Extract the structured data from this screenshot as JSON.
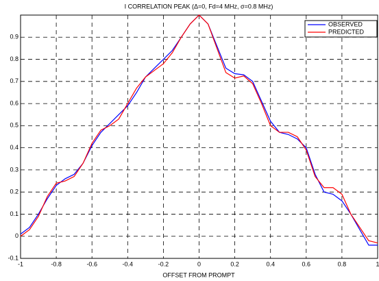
{
  "chart_data": {
    "type": "line",
    "title": "I CORRELATION PEAK (Δ=0, Fd=4 MHz, σ=0.8 MHz)",
    "x_label": "OFFSET FROM PROMPT",
    "x": [
      -1,
      -0.95,
      -0.9,
      -0.85,
      -0.8,
      -0.75,
      -0.7,
      -0.65,
      -0.6,
      -0.55,
      -0.5,
      -0.45,
      -0.4,
      -0.35,
      -0.3,
      -0.25,
      -0.2,
      -0.15,
      -0.1,
      -0.05,
      0,
      0.05,
      0.1,
      0.15,
      0.2,
      0.25,
      0.3,
      0.35,
      0.4,
      0.45,
      0.5,
      0.55,
      0.6,
      0.65,
      0.7,
      0.75,
      0.8,
      0.85,
      0.9,
      0.95,
      1
    ],
    "series": [
      {
        "name": "OBSERVED",
        "color": "#0000ff",
        "values": [
          0.01,
          0.04,
          0.1,
          0.17,
          0.23,
          0.26,
          0.28,
          0.33,
          0.41,
          0.47,
          0.51,
          0.55,
          0.59,
          0.65,
          0.72,
          0.76,
          0.8,
          0.84,
          0.9,
          0.96,
          1.0,
          0.96,
          0.86,
          0.76,
          0.735,
          0.73,
          0.7,
          0.61,
          0.52,
          0.47,
          0.46,
          0.44,
          0.4,
          0.28,
          0.2,
          0.19,
          0.16,
          0.1,
          0.03,
          -0.04,
          -0.04
        ]
      },
      {
        "name": "PREDICTED",
        "color": "#ff0000",
        "values": [
          0.0,
          0.03,
          0.09,
          0.18,
          0.24,
          0.25,
          0.27,
          0.33,
          0.42,
          0.48,
          0.5,
          0.53,
          0.6,
          0.67,
          0.72,
          0.75,
          0.78,
          0.83,
          0.9,
          0.96,
          1.0,
          0.96,
          0.85,
          0.74,
          0.715,
          0.725,
          0.69,
          0.6,
          0.5,
          0.47,
          0.47,
          0.45,
          0.39,
          0.27,
          0.22,
          0.22,
          0.19,
          0.1,
          0.04,
          -0.02,
          -0.03
        ]
      }
    ],
    "xlim": [
      -1,
      1
    ],
    "xticks": [
      -1,
      -0.8,
      -0.6,
      -0.4,
      -0.2,
      0,
      0.2,
      0.4,
      0.6,
      0.8,
      1
    ],
    "ylim": [
      -0.1,
      1
    ],
    "yticks": [
      -0.1,
      0,
      0.1,
      0.2,
      0.3,
      0.4,
      0.5,
      0.6,
      0.7,
      0.8,
      0.9
    ],
    "grid": true,
    "legend": "upper right"
  }
}
